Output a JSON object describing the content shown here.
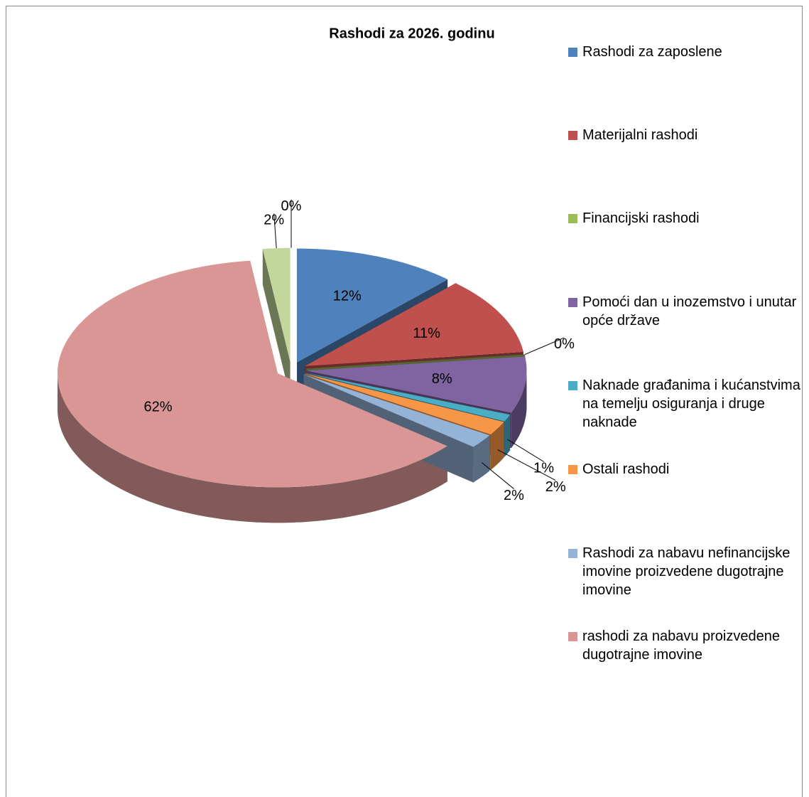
{
  "chart_data": {
    "type": "pie3d",
    "title": "Rashodi za 2026. godinu",
    "categories": [
      "Rashodi za zaposlene",
      "Materijalni rashodi",
      "Financijski rashodi",
      "Pomoći dan u inozemstvo i unutar opće države",
      "Naknade građanima i kućanstvima na temelju osiguranja i druge naknade",
      "Ostali rashodi",
      "Rashodi za nabavu nefinancijske imovine proizvedene dugotrajne imovine",
      "rashodi za nabavu proizvedene dugotrajne imovine",
      null,
      null
    ],
    "values": [
      12,
      11,
      0,
      8,
      1,
      2,
      2,
      62,
      2,
      0
    ],
    "value_labels": [
      "12%",
      "11%",
      "0%",
      "8%",
      "1%",
      "2%",
      "2%",
      "62%",
      "2%",
      "0%"
    ],
    "colors": [
      "#4f81bd",
      "#c0504d",
      "#9bbb59",
      "#8064a2",
      "#4bacc6",
      "#f79646",
      "#95b3d7",
      "#d99694",
      "#c3d69b",
      "#b2a2c7"
    ],
    "legend": "right"
  }
}
